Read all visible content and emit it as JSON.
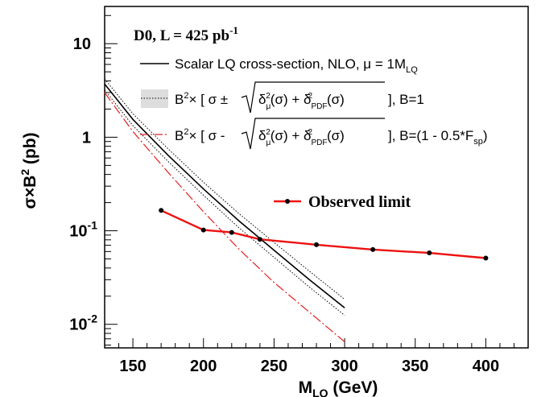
{
  "chart_data": {
    "type": "line",
    "title": "",
    "xlabel": {
      "main": "M",
      "sub": "LQ",
      "unit": " (GeV)"
    },
    "ylabel": {
      "pre": "σ×B",
      "sup": "2",
      "unit": " (pb)"
    },
    "xlim": [
      130,
      430
    ],
    "ylim": [
      0.0056,
      25
    ],
    "y_scale": "log",
    "x_ticks": [
      150,
      200,
      250,
      300,
      350,
      400
    ],
    "x_tick_labels": [
      "150",
      "200",
      "250",
      "300",
      "350",
      "400"
    ],
    "y_ticks": [
      0.01,
      0.1,
      1,
      10
    ],
    "y_tick_labels": [
      {
        "base": "10",
        "exp": "-2"
      },
      {
        "base": "10",
        "exp": "-1"
      },
      {
        "base": "1",
        "exp": ""
      },
      {
        "base": "10",
        "exp": ""
      }
    ],
    "grid": false,
    "annotation": {
      "text": "D0, L = 425 pb",
      "sup": "-1"
    },
    "legend": [
      {
        "kind": "solid",
        "text": "Scalar LQ cross-section, NLO, μ = 1M",
        "sub": "LQ"
      },
      {
        "kind": "band",
        "pre": "B",
        "sup": "2",
        "mid": "× [ σ ± ",
        "rad": [
          "δ",
          "μ",
          "2",
          "(σ) + δ",
          "PDF",
          "2",
          "(σ)"
        ],
        "post": " ], B=1"
      },
      {
        "kind": "dashed",
        "pre": "B",
        "sup": "2",
        "mid": "× [ σ  -  ",
        "rad": [
          "δ",
          "μ",
          "2",
          "(σ) + δ",
          "PDF",
          "2",
          "(σ)"
        ],
        "post": " ], B=(1 - 0.5*F",
        "post_sub": "sp",
        "post_end": ")"
      }
    ],
    "observed_legend": "Observed limit",
    "series": [
      {
        "name": "Scalar LQ cross-section, NLO, μ = 1M",
        "style": "solid",
        "color": "#000000",
        "x": [
          130,
          150,
          175,
          200,
          225,
          250,
          275,
          300
        ],
        "y": [
          3.7,
          1.55,
          0.64,
          0.28,
          0.128,
          0.062,
          0.03,
          0.015
        ]
      },
      {
        "name": "band upper",
        "style": "dotted",
        "color": "#000000",
        "x": [
          130,
          150,
          175,
          200,
          225,
          250,
          275,
          300
        ],
        "y": [
          4.2,
          1.78,
          0.75,
          0.33,
          0.153,
          0.075,
          0.037,
          0.0185
        ]
      },
      {
        "name": "band lower",
        "style": "dotted",
        "color": "#000000",
        "x": [
          130,
          150,
          175,
          200,
          225,
          250,
          275,
          300
        ],
        "y": [
          3.2,
          1.33,
          0.55,
          0.24,
          0.108,
          0.052,
          0.025,
          0.0125
        ]
      },
      {
        "name": "B=(1 - 0.5*F",
        "style": "dashed",
        "color": "#e02020",
        "x": [
          130,
          150,
          175,
          200,
          225,
          250,
          275,
          300
        ],
        "y": [
          3.0,
          1.15,
          0.42,
          0.16,
          0.064,
          0.028,
          0.0135,
          0.0065
        ]
      },
      {
        "name": "Observed limit",
        "style": "solid-markers",
        "color": "#ee1111",
        "x": [
          170,
          200,
          220,
          240,
          280,
          320,
          360,
          400
        ],
        "y": [
          0.165,
          0.102,
          0.096,
          0.081,
          0.071,
          0.063,
          0.058,
          0.051
        ]
      }
    ]
  }
}
